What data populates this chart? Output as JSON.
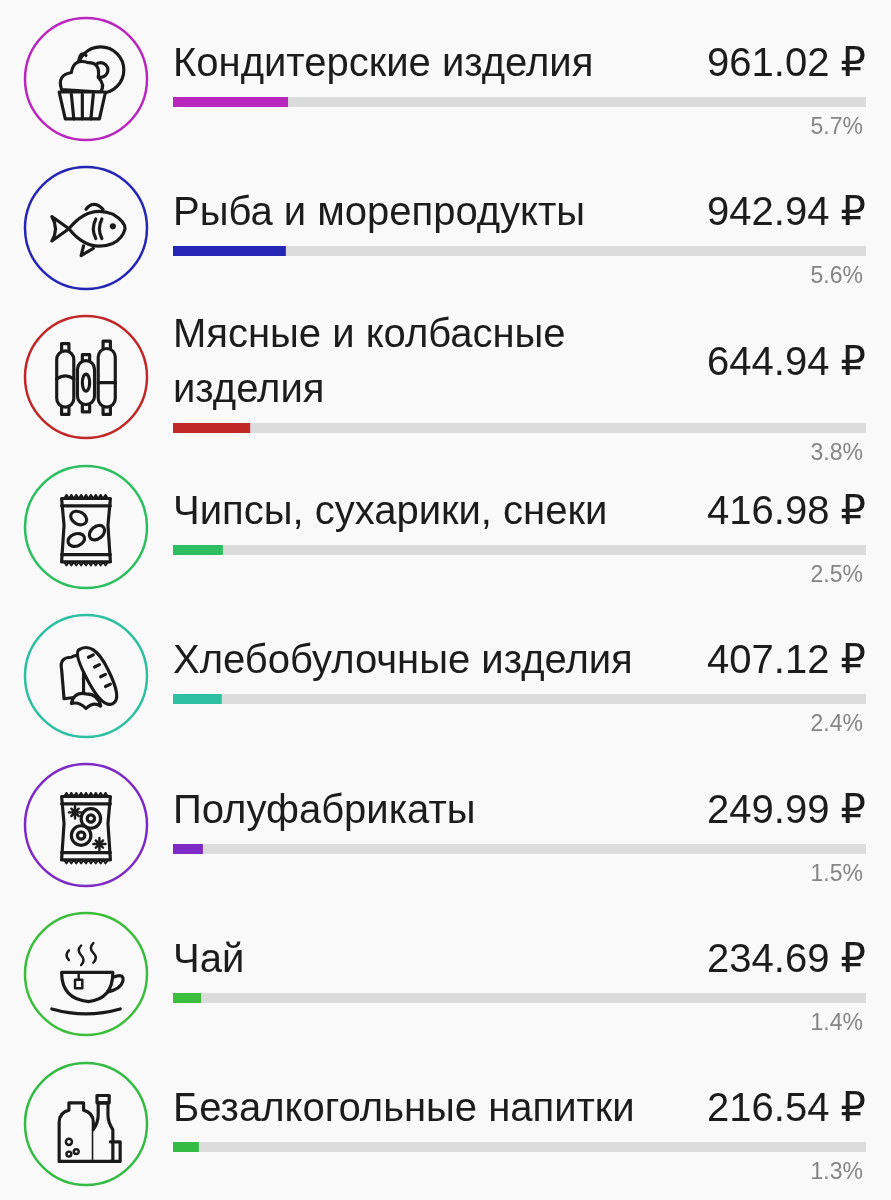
{
  "chart_data": {
    "type": "bar",
    "orientation": "horizontal",
    "categories": [
      "Кондитерские изделия",
      "Рыба и морепродукты",
      "Мясные и колбасные изделия",
      "Чипсы, сухарики, снеки",
      "Хлебобулочные изделия",
      "Полуфабрикаты",
      "Чай",
      "Безалкогольные напитки"
    ],
    "values": [
      961.02,
      942.94,
      644.94,
      416.98,
      407.12,
      249.99,
      234.69,
      216.54
    ],
    "value_labels": [
      "961.02 ₽",
      "942.94 ₽",
      "644.94 ₽",
      "416.98 ₽",
      "407.12 ₽",
      "249.99 ₽",
      "234.69 ₽",
      "216.54 ₽"
    ],
    "colors": [
      "#b928be",
      "#2626b4",
      "#c02828",
      "#2dbe60",
      "#2ebfa0",
      "#7d2bc4",
      "#3cbe3c",
      "#33bb44"
    ],
    "xlim": [
      0,
      5790
    ],
    "annotations": [
      "5.7%",
      "5.6%",
      "3.8%",
      "2.5%",
      "2.4%",
      "1.5%",
      "1.4%",
      "1.3%"
    ]
  }
}
